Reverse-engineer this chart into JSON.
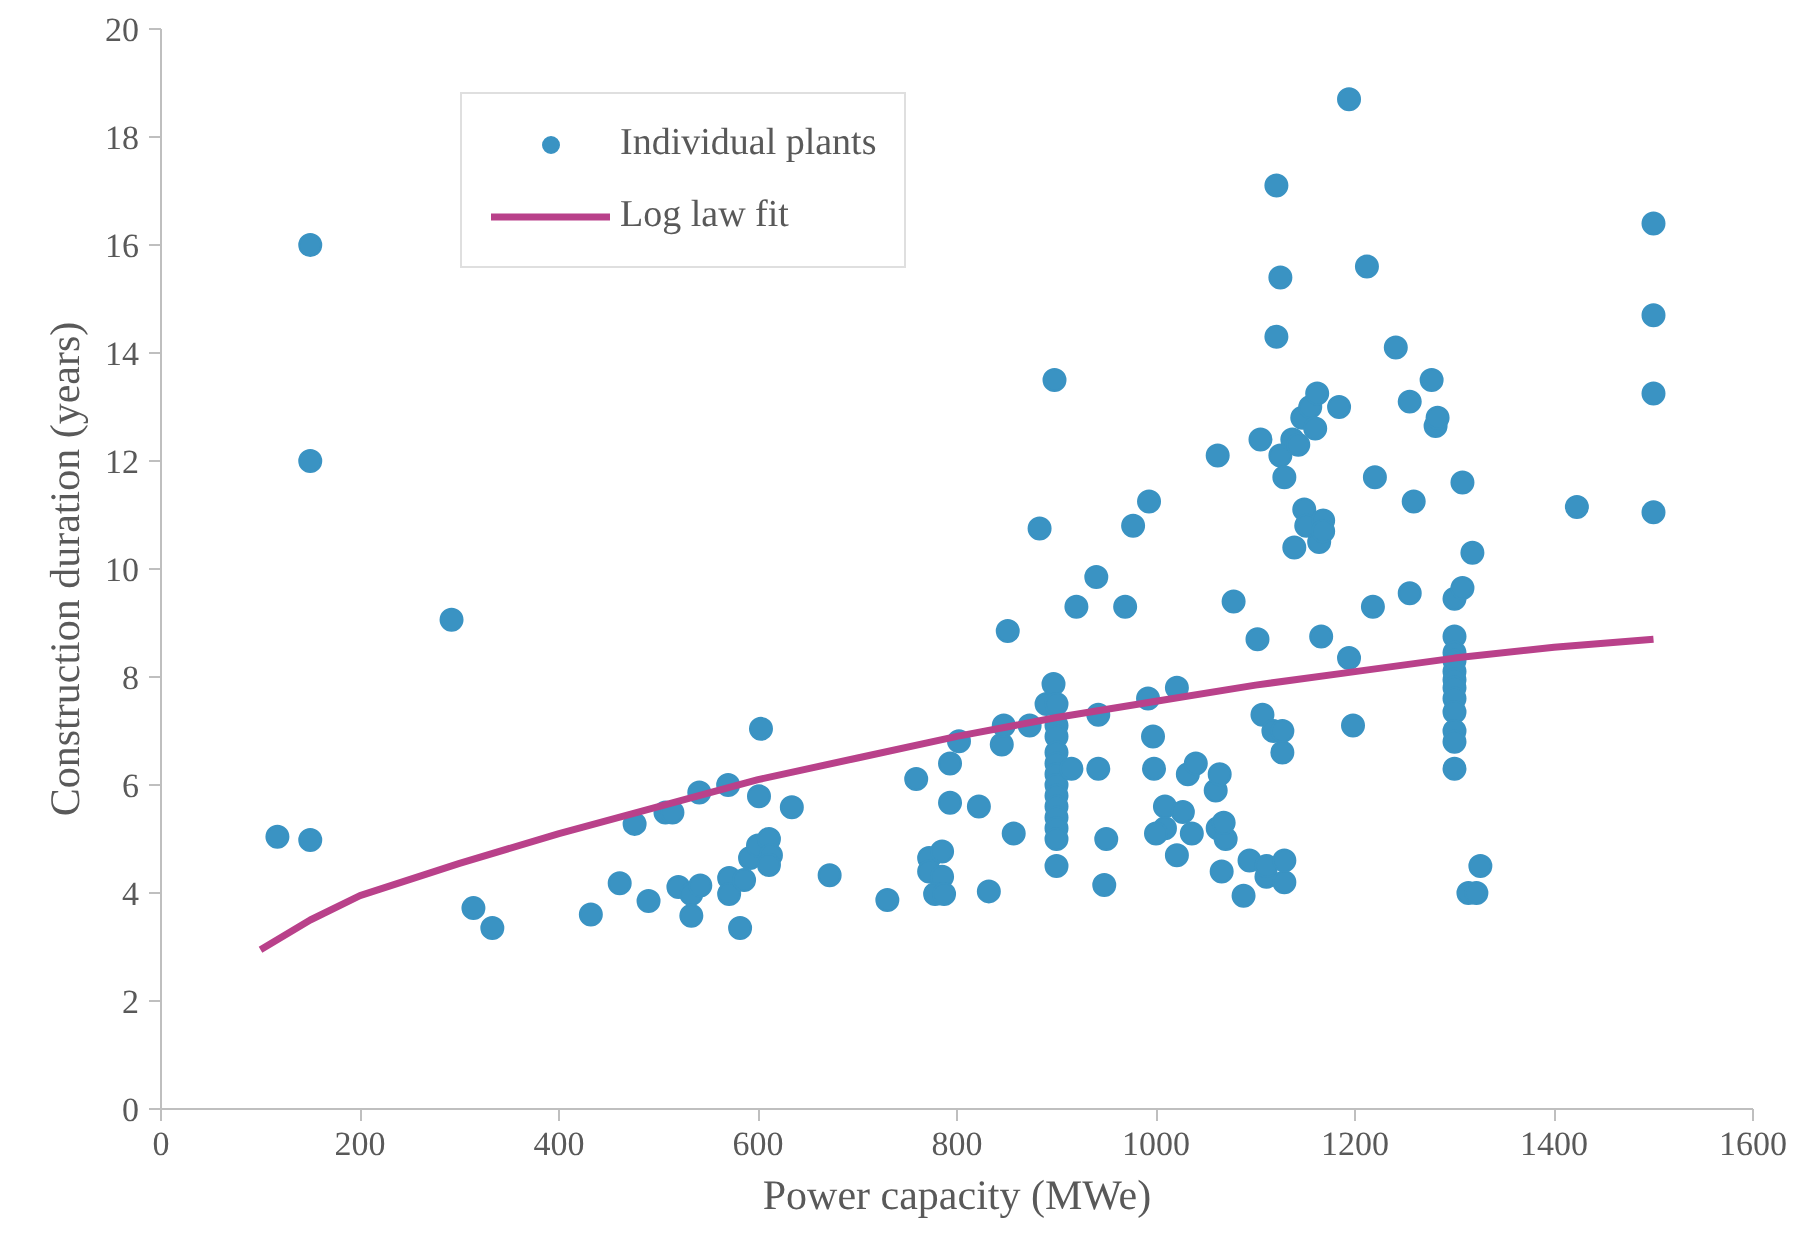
{
  "chart_data": {
    "type": "scatter",
    "xlabel": "Power capacity (MWe)",
    "ylabel": "Construction duration (years)",
    "xlim": [
      0,
      1600
    ],
    "ylim": [
      0,
      20
    ],
    "xticks": [
      0,
      200,
      400,
      600,
      800,
      1000,
      1200,
      1400,
      1600
    ],
    "yticks": [
      0,
      2,
      4,
      6,
      8,
      10,
      12,
      14,
      16,
      18,
      20
    ],
    "grid": false,
    "legend": "top left",
    "series": [
      {
        "name": "Individual plants",
        "marker": "circle",
        "color": "#3a93c3",
        "x": [
          117,
          150,
          150,
          150,
          292,
          314,
          333,
          432,
          461,
          476,
          490,
          507,
          514,
          520,
          533,
          533,
          542,
          541,
          570,
          571,
          571,
          586,
          582,
          601,
          603,
          634,
          592,
          600,
          611,
          613,
          611,
          672,
          730,
          759,
          772,
          772,
          785,
          785,
          778,
          787,
          793,
          793,
          802,
          822,
          845,
          847,
          832,
          851,
          857,
          873,
          883,
          890,
          897,
          898,
          900,
          900,
          900,
          900,
          900,
          900,
          900,
          900,
          900,
          900,
          900,
          900,
          900,
          920,
          915,
          940,
          942,
          942,
          948,
          950,
          969,
          977,
          993,
          992,
          997,
          998,
          1009,
          1009,
          1000,
          1021,
          1021,
          1027,
          1032,
          1036,
          1040,
          1062,
          1060,
          1062,
          1066,
          1070,
          1068,
          1064,
          1078,
          1088,
          1094,
          1102,
          1105,
          1107,
          1111,
          1111,
          1118,
          1121,
          1121,
          1125,
          1125,
          1129,
          1127,
          1127,
          1129,
          1129,
          1137,
          1139,
          1143,
          1147,
          1149,
          1151,
          1155,
          1160,
          1162,
          1164,
          1168,
          1168,
          1166,
          1184,
          1194,
          1194,
          1198,
          1212,
          1218,
          1220,
          1241,
          1255,
          1255,
          1259,
          1277,
          1281,
          1283,
          1300,
          1300,
          1300,
          1300,
          1300,
          1300,
          1300,
          1300,
          1300,
          1300,
          1300,
          1300,
          1308,
          1308,
          1314,
          1322,
          1318,
          1326,
          1423,
          1500,
          1500,
          1500,
          1500
        ],
        "values": [
          5.04,
          4.98,
          16.0,
          12.0,
          9.06,
          3.72,
          3.35,
          3.6,
          4.18,
          5.28,
          3.85,
          5.49,
          5.49,
          4.11,
          3.98,
          3.58,
          4.14,
          5.86,
          6.0,
          4.28,
          3.98,
          4.24,
          3.35,
          5.79,
          7.04,
          5.59,
          4.65,
          4.88,
          5.0,
          4.7,
          4.52,
          4.33,
          3.87,
          6.11,
          4.65,
          4.4,
          4.77,
          4.3,
          3.98,
          3.98,
          6.4,
          5.67,
          6.81,
          5.6,
          6.75,
          7.1,
          4.03,
          8.85,
          5.1,
          7.1,
          10.75,
          7.5,
          7.87,
          13.5,
          7.5,
          7.1,
          6.9,
          6.6,
          6.4,
          6.2,
          6.0,
          5.8,
          5.6,
          5.4,
          5.2,
          5.0,
          4.5,
          9.3,
          6.3,
          9.85,
          7.3,
          6.3,
          4.15,
          5.0,
          9.3,
          10.8,
          11.25,
          7.6,
          6.9,
          6.3,
          5.6,
          5.2,
          5.1,
          7.8,
          4.7,
          5.5,
          6.2,
          5.1,
          6.4,
          12.1,
          5.9,
          5.2,
          4.4,
          5.0,
          5.3,
          6.2,
          9.4,
          3.95,
          4.6,
          8.7,
          12.4,
          7.3,
          4.3,
          4.5,
          7.0,
          14.3,
          17.1,
          15.4,
          12.1,
          11.7,
          6.6,
          7.0,
          4.2,
          4.6,
          12.4,
          10.4,
          12.3,
          12.8,
          11.1,
          10.8,
          13.0,
          12.6,
          13.25,
          10.5,
          10.9,
          10.7,
          8.75,
          13.0,
          18.7,
          8.35,
          7.1,
          15.6,
          9.3,
          11.7,
          14.1,
          13.1,
          9.55,
          11.25,
          13.5,
          12.65,
          12.8,
          9.45,
          8.75,
          8.45,
          8.3,
          8.1,
          7.95,
          7.8,
          7.6,
          7.35,
          7.0,
          6.8,
          6.3,
          11.6,
          9.65,
          4.0,
          4.0,
          10.3,
          4.5,
          11.15,
          16.4,
          14.7,
          13.25,
          11.05
        ]
      },
      {
        "name": "Log law fit",
        "type": "line",
        "color": "#b9418a",
        "line_style": "solid",
        "x": [
          100,
          150,
          200,
          300,
          400,
          500,
          600,
          700,
          800,
          900,
          1000,
          1100,
          1200,
          1300,
          1400,
          1500
        ],
        "values": [
          2.95,
          3.5,
          3.95,
          4.55,
          5.1,
          5.6,
          6.1,
          6.5,
          6.9,
          7.25,
          7.55,
          7.85,
          8.1,
          8.35,
          8.55,
          8.7
        ]
      }
    ]
  }
}
